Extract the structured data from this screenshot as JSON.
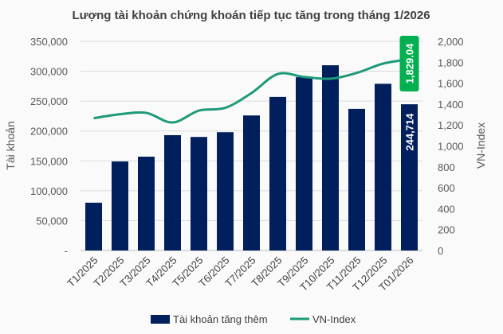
{
  "chart_data": {
    "type": "bar+line",
    "title": "Lượng tài khoản chứng khoán tiếp tục tăng trong tháng 1/2026",
    "categories": [
      "T1/2025",
      "T2/2025",
      "T3/2025",
      "T4/2025",
      "T5/2025",
      "T6/2025",
      "T7/2025",
      "T8/2025",
      "T9/2025",
      "T10/2025",
      "T11/2025",
      "T12/2025",
      "T01/2026"
    ],
    "series": [
      {
        "name": "Tài khoản tăng thêm",
        "type": "bar",
        "axis": "left",
        "color": "#001f5c",
        "values": [
          80000,
          149000,
          157000,
          193000,
          190000,
          198000,
          226000,
          257000,
          290000,
          310000,
          237000,
          279000,
          244714
        ]
      },
      {
        "name": "VN-Index",
        "type": "line",
        "axis": "right",
        "color": "#1e9a7a",
        "values": [
          1265,
          1303,
          1316,
          1224,
          1338,
          1364,
          1506,
          1688,
          1660,
          1643,
          1698,
          1787,
          1829.04
        ]
      }
    ],
    "ylabel_left": "Tài khoản",
    "ylabel_right": "VN-Index",
    "ylim_left": [
      0,
      350000
    ],
    "ylim_right": [
      0,
      2000
    ],
    "yticks_left": [
      "-",
      "50,000",
      "100,000",
      "150,000",
      "200,000",
      "250,000",
      "300,000",
      "350,000"
    ],
    "yticks_right": [
      "0",
      "200",
      "400",
      "600",
      "800",
      "1,000",
      "1,200",
      "1,400",
      "1,600",
      "1,800",
      "2,000"
    ],
    "data_labels": {
      "bar_last": "244,714",
      "line_last": "1,829.04",
      "line_label_color": "#00b050"
    },
    "grid": true,
    "legend": "bottom"
  }
}
